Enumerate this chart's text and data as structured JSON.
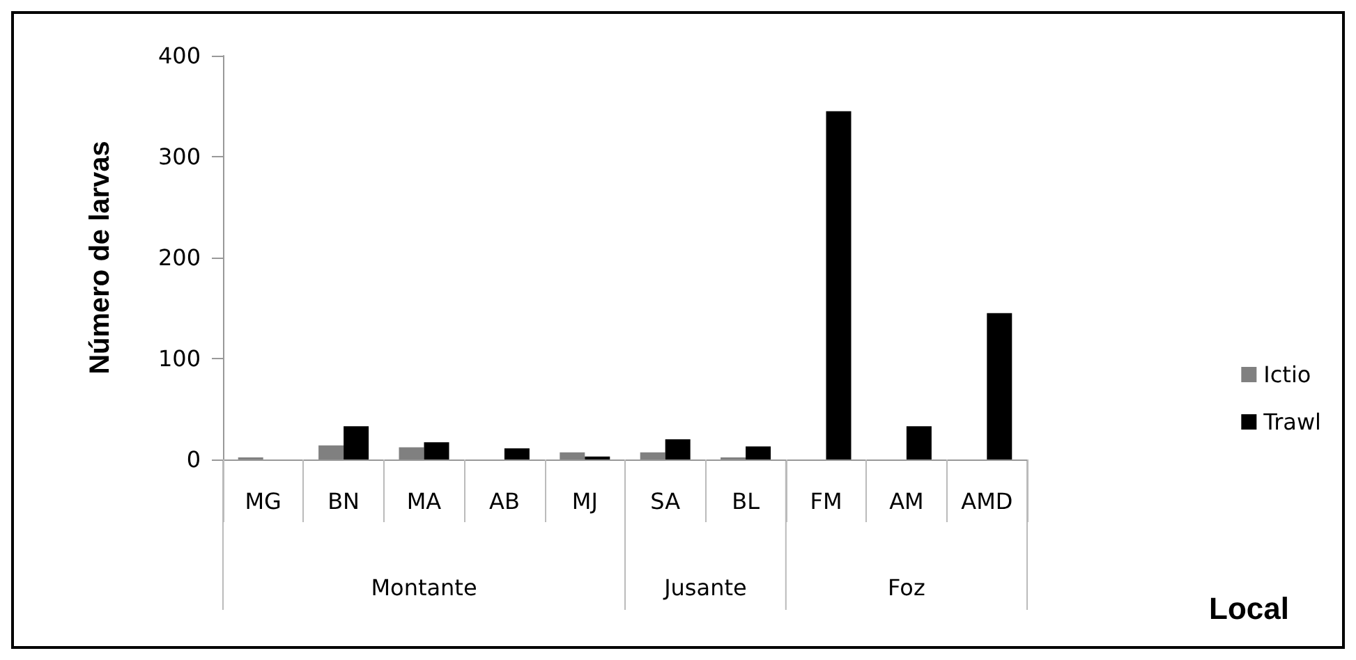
{
  "chart_data": {
    "type": "bar",
    "ylabel": "Número de larvas",
    "categories": [
      "MG",
      "BN",
      "MA",
      "AB",
      "MJ",
      "SA",
      "BL",
      "FM",
      "AM",
      "AMD"
    ],
    "series": [
      {
        "name": "Ictio",
        "color": "#808080",
        "values": [
          2,
          14,
          12,
          0,
          7,
          7,
          2,
          0,
          0,
          0
        ]
      },
      {
        "name": "Trawl",
        "color": "#000000",
        "values": [
          0,
          33,
          17,
          11,
          3,
          20,
          13,
          345,
          33,
          145
        ]
      }
    ],
    "annotations": [
      "Montante",
      "Jusante",
      "Foz",
      "Local"
    ],
    "ylim": [
      0,
      400
    ],
    "yticks": [
      0,
      100,
      200,
      300,
      400
    ],
    "grid": false,
    "legend": "right"
  }
}
